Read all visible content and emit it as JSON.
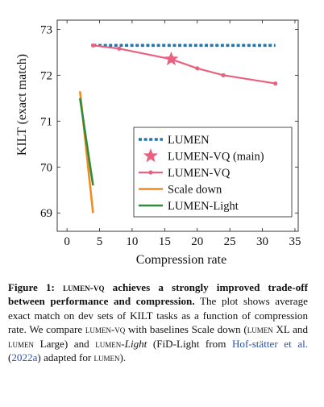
{
  "chart_data": {
    "type": "line",
    "xlabel": "Compression rate",
    "ylabel": "KILT (exact match)",
    "xlim": [
      -1.5,
      35.5
    ],
    "ylim": [
      68.6,
      73.2
    ],
    "xticks": [
      0,
      5,
      10,
      15,
      20,
      25,
      30,
      35
    ],
    "yticks": [
      69,
      70,
      71,
      72,
      73
    ],
    "legend_position": "bottom-right",
    "series": [
      {
        "name": "LUMEN",
        "style": "dotted",
        "color": "#1f77b4",
        "x": [
          4,
          32
        ],
        "y": [
          72.65,
          72.65
        ]
      },
      {
        "name": "LUMEN-VQ (main)",
        "style": "star",
        "color": "#e8617f",
        "x": [
          16
        ],
        "y": [
          72.35
        ]
      },
      {
        "name": "LUMEN-VQ",
        "style": "line-dots",
        "color": "#e8617f",
        "x": [
          4,
          8,
          16,
          20,
          24,
          32
        ],
        "y": [
          72.65,
          72.58,
          72.35,
          72.15,
          72.0,
          71.82
        ]
      },
      {
        "name": "Scale down",
        "style": "line",
        "color": "#f28a1e",
        "x": [
          2,
          4
        ],
        "y": [
          71.65,
          69.0
        ]
      },
      {
        "name": "LUMEN-Light",
        "style": "line",
        "color": "#2e8b3a",
        "x": [
          2,
          4
        ],
        "y": [
          71.5,
          69.6
        ]
      }
    ]
  },
  "caption": {
    "label": "Figure 1:",
    "bold_sc": "lumen-vq",
    "bold_rest": "achieves a strongly improved trade-off between performance and compression.",
    "s1": "The plot shows average exact match on dev sets of KILT tasks as a function of compression rate. We compare",
    "s2_sc": "lumen-vq",
    "s3": "with baselines Scale down (",
    "s4_sc": "lumen",
    "s5": "XL and",
    "s6_sc": "lumen",
    "s7": "Large) and",
    "s8_sc": "lumen-",
    "s9_ital": "Light",
    "s10": "(FiD-Light from",
    "cite1": "Hof-stätter et al.",
    "s11": "(",
    "cite2": "2022a",
    "s12": ") adapted for",
    "s13_sc": "lumen",
    "s14": ")."
  }
}
